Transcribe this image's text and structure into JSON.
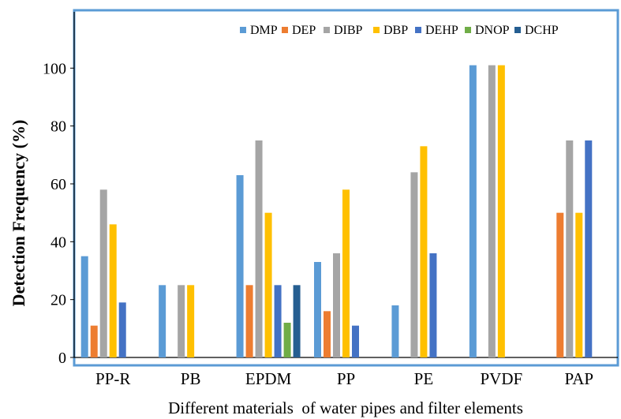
{
  "chart_data": {
    "type": "bar",
    "categories": [
      "PP-R",
      "PB",
      "EPDM",
      "PP",
      "PE",
      "PVDF",
      "PAP"
    ],
    "series": [
      {
        "name": "DMP",
        "color": "#5B9BD5",
        "values": [
          35,
          25,
          63,
          33,
          18,
          101,
          0
        ]
      },
      {
        "name": "DEP",
        "color": "#ED7D31",
        "values": [
          11,
          0,
          25,
          16,
          0,
          0,
          50
        ]
      },
      {
        "name": "DIBP",
        "color": "#A5A5A5",
        "values": [
          58,
          25,
          75,
          36,
          64,
          101,
          75
        ]
      },
      {
        "name": "DBP",
        "color": "#FFC000",
        "values": [
          46,
          25,
          50,
          58,
          73,
          101,
          50
        ]
      },
      {
        "name": "DEHP",
        "color": "#4472C4",
        "values": [
          19,
          0,
          25,
          11,
          36,
          0,
          75
        ]
      },
      {
        "name": "DNOP",
        "color": "#70AD47",
        "values": [
          0,
          0,
          12,
          0,
          0,
          0,
          0
        ]
      },
      {
        "name": "DCHP",
        "color": "#255E91",
        "values": [
          0,
          0,
          25,
          0,
          0,
          0,
          0
        ]
      }
    ],
    "xlabel": "Different materials  of water pipes and filter elements",
    "ylabel": "Detection Frequency (%)",
    "ylim": [
      0,
      120
    ],
    "yticks": [
      "0",
      "20",
      "40",
      "60",
      "80",
      "100"
    ],
    "grid": false,
    "legend_position": "top-right",
    "frame_color": "#5B9BD5"
  }
}
